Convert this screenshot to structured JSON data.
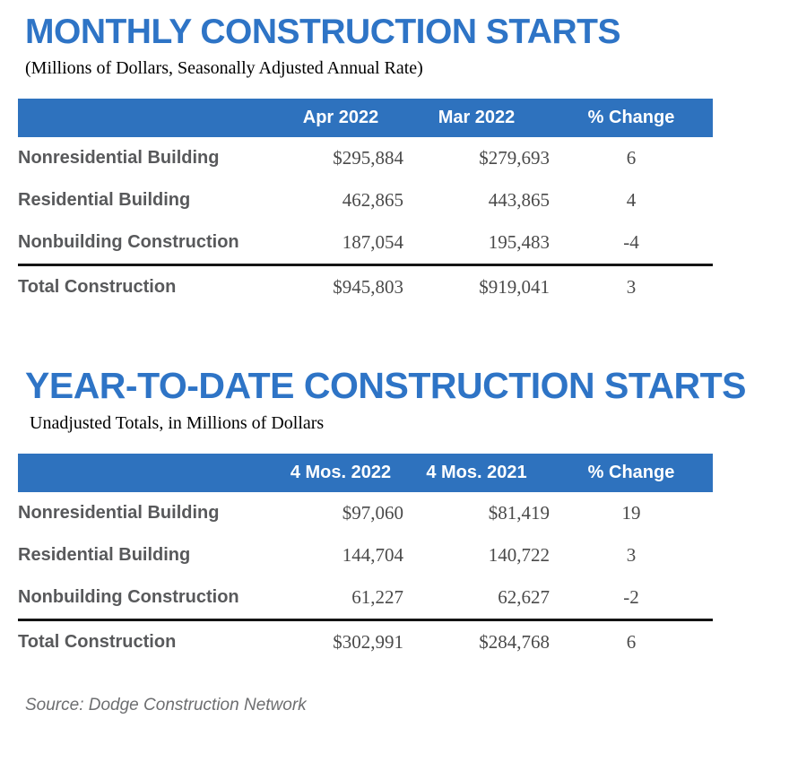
{
  "colors": {
    "title_blue": "#2E74C6",
    "header_bar_blue": "#2E72BE",
    "label_gray": "#58595B",
    "value_gray": "#4A4A4A",
    "total_rule_black": "#141414",
    "source_gray": "#6D6E70",
    "background": "#FFFFFF"
  },
  "monthly": {
    "title": "MONTHLY CONSTRUCTION STARTS",
    "subtitle": "(Millions of Dollars, Seasonally Adjusted Annual Rate)",
    "col_headers": [
      "Apr 2022",
      "Mar 2022",
      "% Change"
    ],
    "rows": [
      {
        "label": "Nonresidential Building",
        "v1": "$295,884",
        "v2": "$279,693",
        "pct": "6"
      },
      {
        "label": "Residential Building",
        "v1": "462,865",
        "v2": "443,865",
        "pct": "4"
      },
      {
        "label": "Nonbuilding Construction",
        "v1": "187,054",
        "v2": "195,483",
        "pct": "-4"
      }
    ],
    "total": {
      "label": "Total Construction",
      "v1": "$945,803",
      "v2": "$919,041",
      "pct": "3"
    }
  },
  "ytd": {
    "title": "YEAR-TO-DATE CONSTRUCTION STARTS",
    "subtitle": "Unadjusted Totals, in Millions of Dollars",
    "col_headers": [
      "4 Mos. 2022",
      "4 Mos. 2021",
      "% Change"
    ],
    "rows": [
      {
        "label": "Nonresidential Building",
        "v1": "$97,060",
        "v2": "$81,419",
        "pct": "19"
      },
      {
        "label": "Residential Building",
        "v1": "144,704",
        "v2": "140,722",
        "pct": "3"
      },
      {
        "label": "Nonbuilding Construction",
        "v1": "61,227",
        "v2": "62,627",
        "pct": "-2"
      }
    ],
    "total": {
      "label": "Total Construction",
      "v1": "$302,991",
      "v2": "$284,768",
      "pct": "6"
    }
  },
  "footer": {
    "source_note": "Source: Dodge Construction Network"
  }
}
